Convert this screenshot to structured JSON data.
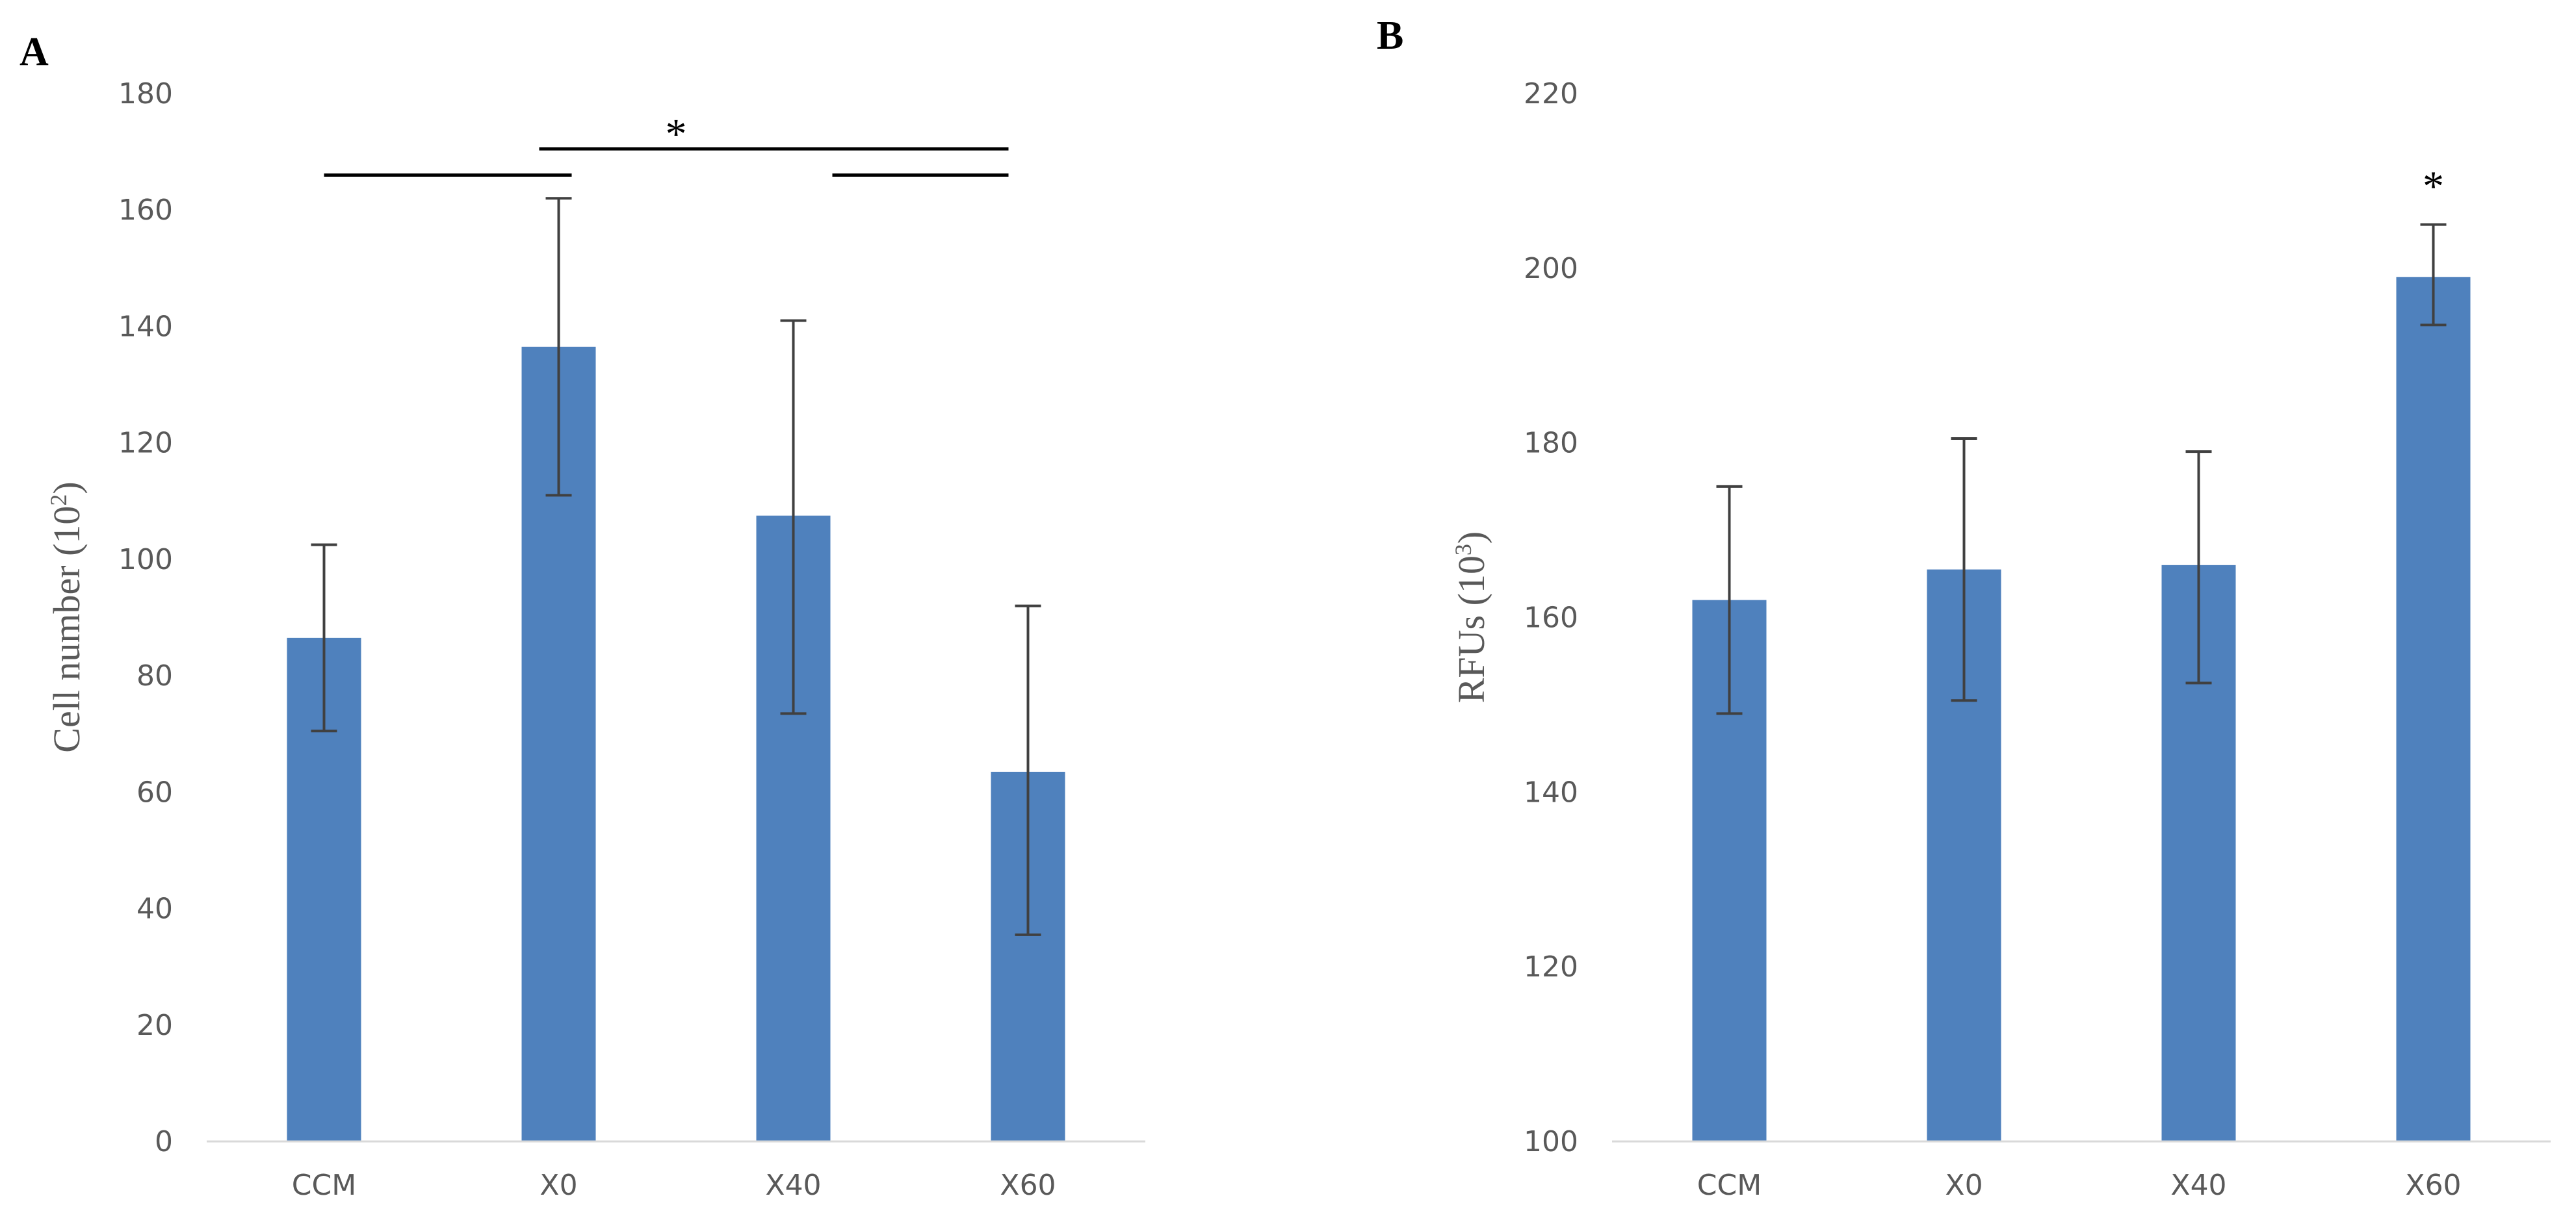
{
  "colors": {
    "bar": "#4f81bd",
    "axis": "#d9d9d9",
    "error_bar": "#404040",
    "bracket": "#000000",
    "text": "#595959"
  },
  "chart_data": [
    {
      "type": "bar",
      "panel_label": "A",
      "title": "",
      "xlabel": "",
      "ylabel": {
        "text": "Cell number (10",
        "superscript": "2",
        "suffix": ")"
      },
      "ylim": [
        0,
        180
      ],
      "yticks": [
        0,
        20,
        40,
        60,
        80,
        100,
        120,
        140,
        160,
        180
      ],
      "grid": false,
      "categories": [
        "CCM",
        "X0",
        "X40",
        "X60"
      ],
      "values": [
        86.5,
        136.5,
        107.5,
        63.5
      ],
      "error_low": [
        70.5,
        111,
        73.5,
        35.5
      ],
      "error_high": [
        102.5,
        162,
        141,
        92
      ],
      "annotations": [
        {
          "type": "bracket",
          "from": "CCM",
          "to": "X0",
          "level": 166
        },
        {
          "type": "bracket",
          "from": "X0",
          "to": "X60",
          "level": 170.5
        },
        {
          "type": "bracket",
          "from": "X40",
          "to": "X60",
          "level": 166
        },
        {
          "type": "star",
          "text": "*",
          "between": [
            "X0",
            "X40"
          ],
          "level": 174
        }
      ]
    },
    {
      "type": "bar",
      "panel_label": "B",
      "title": "",
      "xlabel": "",
      "ylabel": {
        "text": "RFUs (10",
        "superscript": "3",
        "suffix": ")"
      },
      "ylim": [
        100,
        220
      ],
      "yticks": [
        100,
        120,
        140,
        160,
        180,
        200,
        220
      ],
      "grid": false,
      "categories": [
        "CCM",
        "X0",
        "X40",
        "X60"
      ],
      "values": [
        162,
        165.5,
        166,
        199
      ],
      "error_low": [
        149,
        150.5,
        152.5,
        193.5
      ],
      "error_high": [
        175,
        180.5,
        179,
        205
      ],
      "annotations": [
        {
          "type": "star",
          "text": "*",
          "category": "X60",
          "level": 210
        }
      ]
    }
  ]
}
